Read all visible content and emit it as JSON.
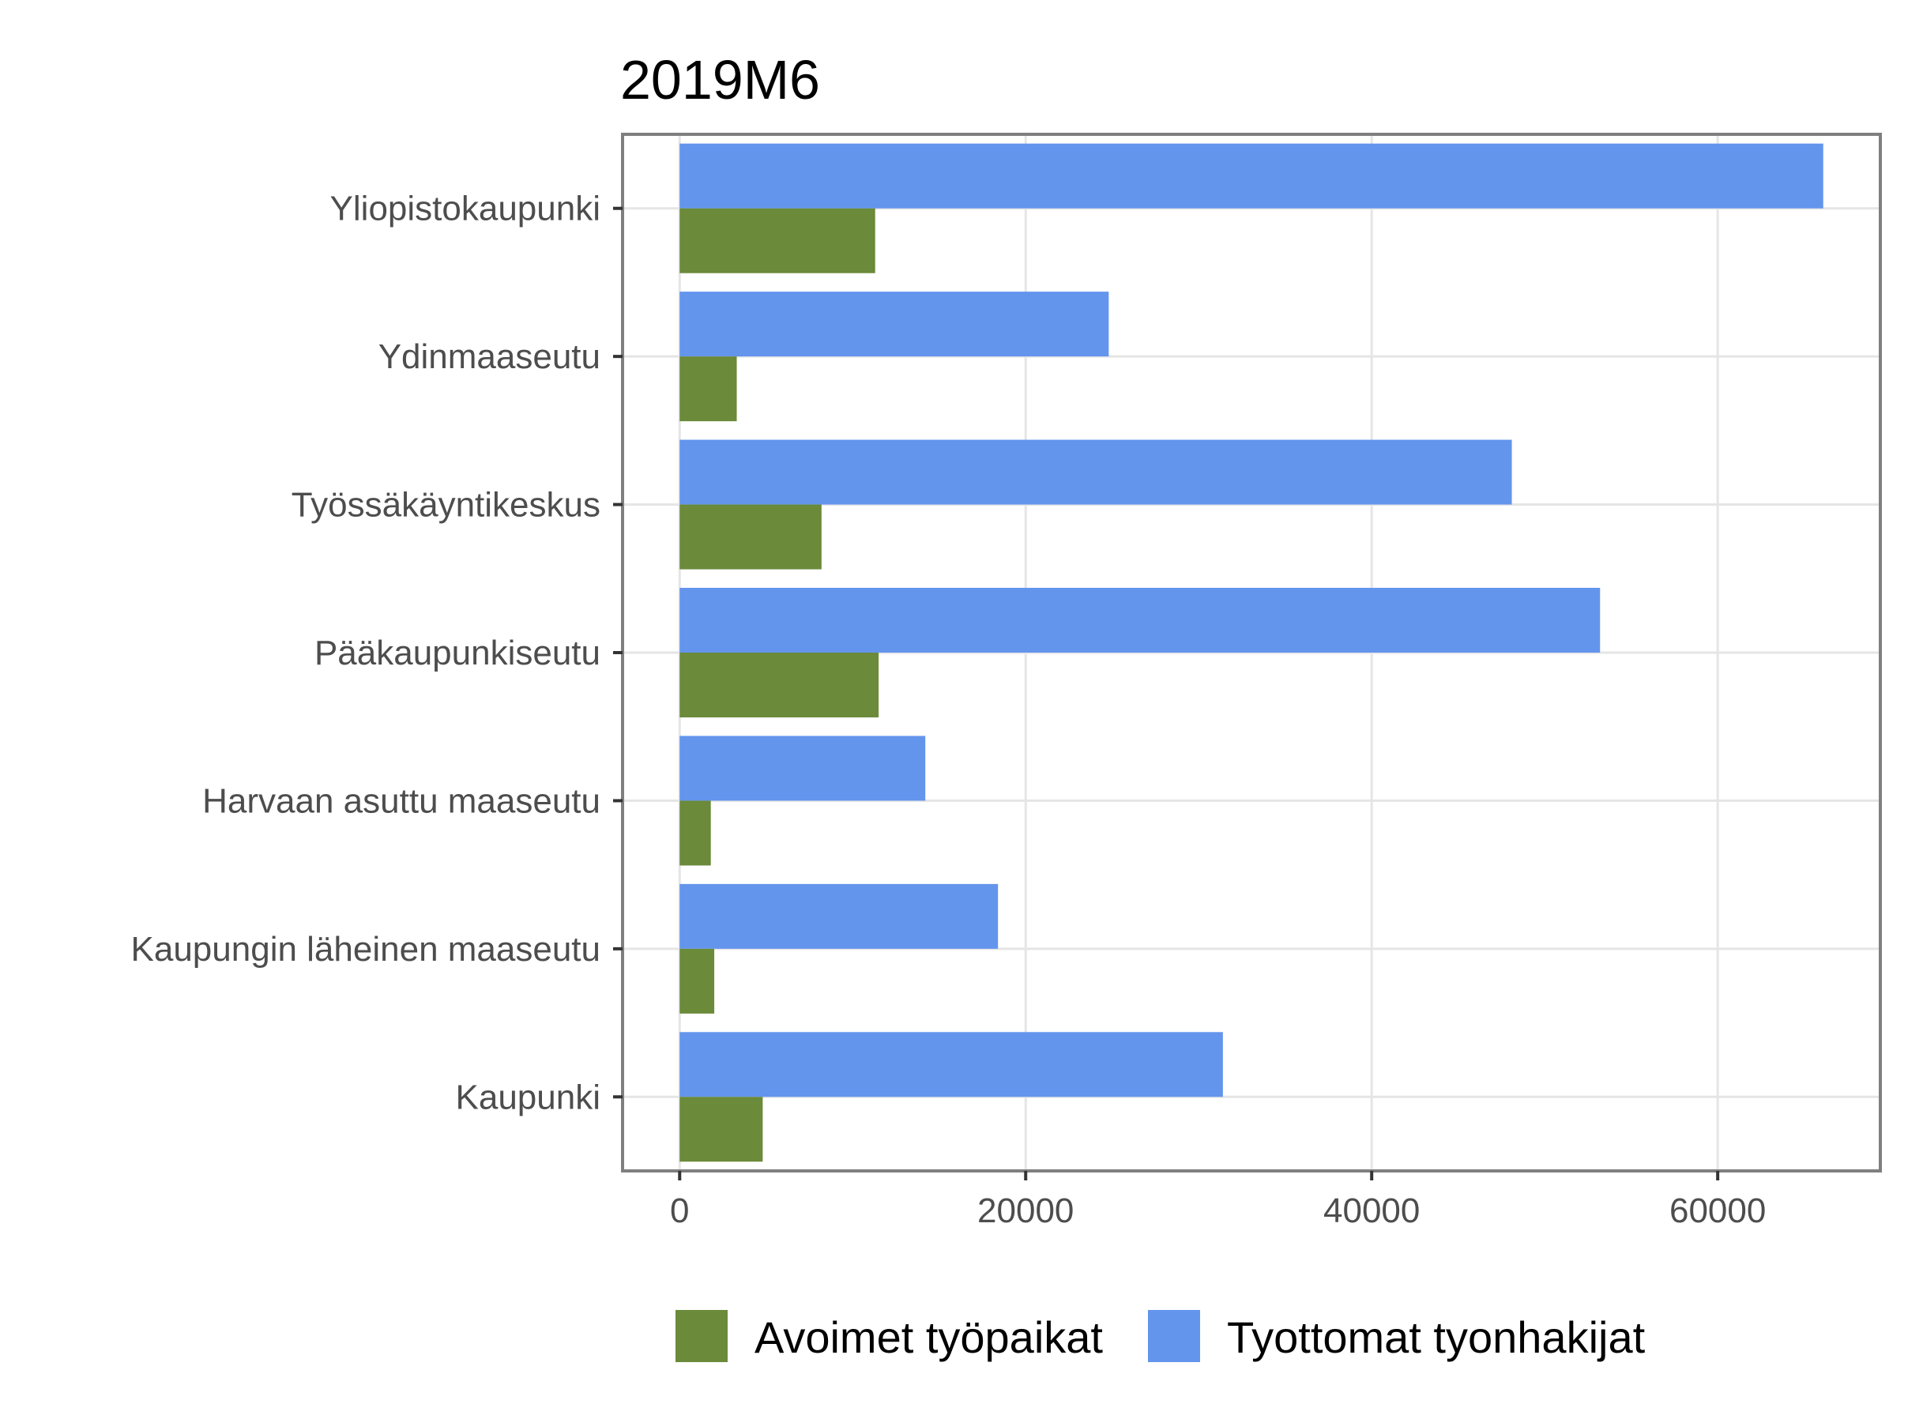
{
  "chart_data": {
    "type": "bar",
    "orientation": "horizontal",
    "title": "2019M6",
    "xlabel": "",
    "ylabel": "",
    "categories": [
      "Yliopistokaupunki",
      "Ydinmaaseutu",
      "Työssäkäyntikeskus",
      "Pääkaupunkiseutu",
      "Harvaan asuttu maaseutu",
      "Kaupungin läheinen maaseutu",
      "Kaupunki"
    ],
    "series": [
      {
        "name": "Avoimet työpaikat",
        "color": "#6b8a3a",
        "values": [
          11300,
          3300,
          8200,
          11500,
          1800,
          2000,
          4800
        ]
      },
      {
        "name": "Tyottomat tyonhakijat",
        "color": "#6495ed",
        "values": [
          66100,
          24800,
          48100,
          53200,
          14200,
          18400,
          31400
        ]
      }
    ],
    "xlim": [
      -3300,
      69400
    ],
    "xticks": [
      0,
      20000,
      40000,
      60000
    ],
    "xtick_labels": [
      "0",
      "20000",
      "40000",
      "60000"
    ],
    "grid": true,
    "legend_position": "bottom"
  }
}
